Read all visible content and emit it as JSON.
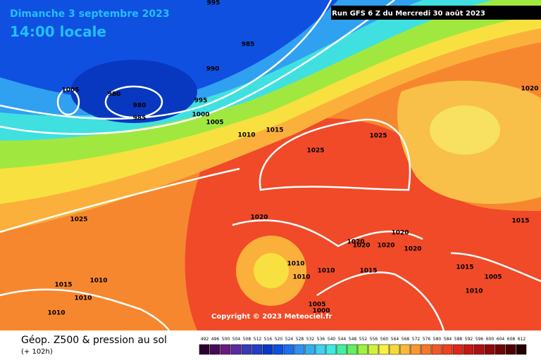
{
  "header": {
    "date": "Dimanche 3 septembre 2023",
    "time": "14:00 locale",
    "run": "Run GFS 6 Z du Mercredi 30 août 2023"
  },
  "map": {
    "isobar_labels": [
      "995",
      "985",
      "990",
      "1005",
      "980",
      "980",
      "995",
      "985",
      "1000",
      "1005",
      "1010",
      "1015",
      "1025",
      "1025",
      "1020",
      "1025",
      "1020",
      "1020",
      "1020",
      "1020",
      "1020",
      "1020",
      "1015",
      "1010",
      "1010",
      "1010",
      "1015",
      "1015",
      "1005",
      "1010",
      "1015",
      "1010",
      "1010",
      "1010",
      "1005",
      "1000"
    ],
    "copyright": "Copyright © 2023 Meteociel.fr"
  },
  "legend": {
    "title": "Géop. Z500 & pression au sol",
    "lead_time": "(+ 102h)",
    "scale": [
      492,
      496,
      500,
      504,
      508,
      512,
      516,
      520,
      524,
      528,
      532,
      536,
      540,
      544,
      548,
      552,
      556,
      560,
      564,
      568,
      572,
      576,
      580,
      584,
      588,
      592,
      596,
      600,
      604,
      608,
      612
    ],
    "colors": [
      "#2a0030",
      "#4a0a5a",
      "#6a1a80",
      "#5a2aa0",
      "#3a3ab8",
      "#2040c8",
      "#0838c8",
      "#0a50e0",
      "#1a70f0",
      "#3090f0",
      "#30b0f0",
      "#40d0f0",
      "#40e8e0",
      "#40f0a0",
      "#60f060",
      "#a0f040",
      "#d0f040",
      "#f8f040",
      "#f8d838",
      "#f8b838",
      "#f89830",
      "#f87828",
      "#f05a28",
      "#f04020",
      "#e02818",
      "#c81810",
      "#b01010",
      "#900808",
      "#700404",
      "#500000",
      "#200000"
    ]
  }
}
